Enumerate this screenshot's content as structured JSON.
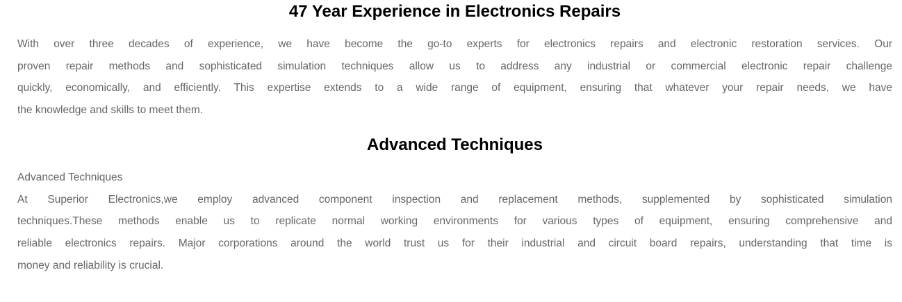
{
  "page": {
    "background_color": "#ffffff",
    "body_text_color": "#666666",
    "heading_text_color": "#000000"
  },
  "intro": {
    "heading": "47 Year Experience in Electronics Repairs",
    "lines": [
      "With over three decades of experience, we have become the go-to experts for electronics repairs and electronic restoration services. Our",
      "proven repair methods and sophisticated simulation techniques allow us to address any industrial or commercial electronic repair challenge",
      "quickly, economically, and efficiently. This expertise extends to a wide range of equipment, ensuring that whatever your repair needs, we have",
      "the knowledge and skills to meet them."
    ]
  },
  "advanced": {
    "heading": "Advanced Techniques",
    "sub_line": "Advanced Techniques",
    "lines": [
      "At Superior Electronics,we employ advanced component inspection and replacement methods, supplemented by sophisticated simulation",
      "techniques.These methods enable us to replicate normal working environments for various types of equipment, ensuring comprehensive and",
      "reliable electronics repairs. Major corporations around the world trust us for their industrial and circuit board repairs, understanding that time is",
      "money and reliability is crucial."
    ]
  }
}
